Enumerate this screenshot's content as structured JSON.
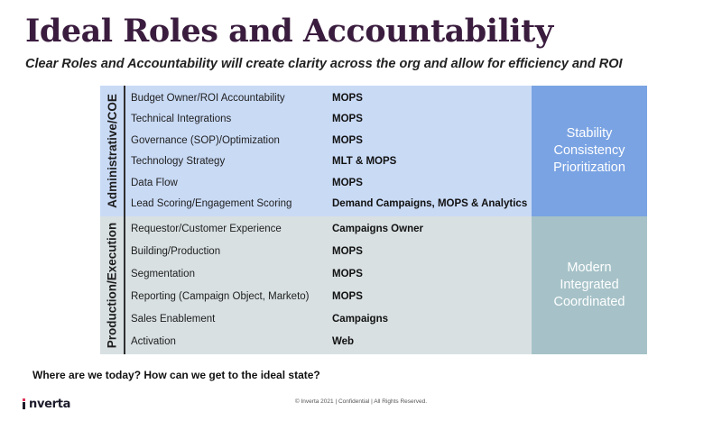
{
  "slide": {
    "title": "Ideal Roles and Accountability",
    "subtitle": "Clear Roles and Accountability will create clarity across the org and allow for efficiency and ROI"
  },
  "sections": {
    "admin": {
      "label": "Administrative/COE",
      "rows": [
        {
          "task": "Budget Owner/ROI Accountability",
          "owner": "MOPS"
        },
        {
          "task": "Technical Integrations",
          "owner": "MOPS"
        },
        {
          "task": "Governance (SOP)/Optimization",
          "owner": "MOPS"
        },
        {
          "task": "Technology Strategy",
          "owner": "MLT & MOPS"
        },
        {
          "task": "Data Flow",
          "owner": "MOPS"
        },
        {
          "task": "Lead Scoring/Engagement Scoring",
          "owner": "Demand Campaigns, MOPS & Analytics"
        }
      ],
      "side": [
        "Stability",
        "Consistency",
        "Prioritization"
      ]
    },
    "prod": {
      "label": "Production/Execution",
      "rows": [
        {
          "task": "Requestor/Customer Experience",
          "owner": "Campaigns Owner"
        },
        {
          "task": "Building/Production",
          "owner": "MOPS"
        },
        {
          "task": "Segmentation",
          "owner": "MOPS"
        },
        {
          "task": "Reporting (Campaign Object, Marketo)",
          "owner": "MOPS"
        },
        {
          "task": "Sales Enablement",
          "owner": "Campaigns"
        },
        {
          "task": "Activation",
          "owner": "Web"
        }
      ],
      "side": [
        "Modern",
        "Integrated",
        "Coordinated"
      ]
    }
  },
  "question": "Where are we today? How can we get to the ideal state?",
  "footer": {
    "logo_text": "nverta",
    "copyright": "© Inverta 2021 | Confidential | All Rights Reserved."
  },
  "colors": {
    "title": "#3a1c3e",
    "admin_bg": "#c9daf5",
    "admin_side": "#7aa3e3",
    "prod_bg": "#d8e0e2",
    "prod_side": "#a6c2c8"
  }
}
